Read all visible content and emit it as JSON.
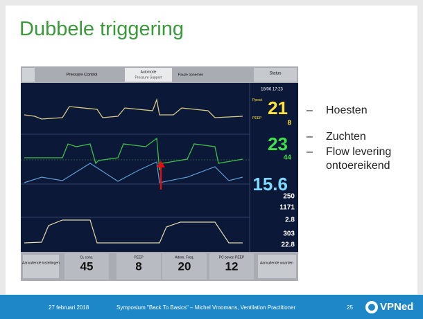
{
  "title": "Dubbele triggering",
  "bullets": [
    "Hoesten",
    "Zuchten",
    "Flow levering ontoereikend"
  ],
  "ventilator": {
    "mode": "Pressure Control",
    "automode": "Automode",
    "automode_sub": "Pressure Support",
    "pause": "Pauze opnemen",
    "status": "Status",
    "datetime": "18/06 17:23",
    "readouts": [
      {
        "label": "Ppeak",
        "value": "21"
      },
      {
        "label": "PEEP",
        "value": "8"
      },
      {
        "value": "23"
      },
      {
        "value": "44"
      },
      {
        "value": "15.6"
      },
      {
        "value": "250"
      },
      {
        "value": "1171"
      },
      {
        "value": "2.8"
      },
      {
        "value": "303"
      },
      {
        "value": "22.8"
      }
    ],
    "settings": [
      {
        "label": "O₂ conc.",
        "value": "45"
      },
      {
        "label": "PEEP",
        "value": "8"
      },
      {
        "label": "Adem. Freq.",
        "value": "20"
      },
      {
        "label": "PC boven PEEP",
        "value": "12"
      }
    ],
    "left_button": "Aanvullende instellingen",
    "right_button": "Aanvullende waarden"
  },
  "footer": {
    "date": "27 februari 2018",
    "text": "Symposium \"Back To Basics\" – Michel Vroomans, Ventilation Practitioner",
    "page": "25",
    "logo": "VPNed"
  }
}
